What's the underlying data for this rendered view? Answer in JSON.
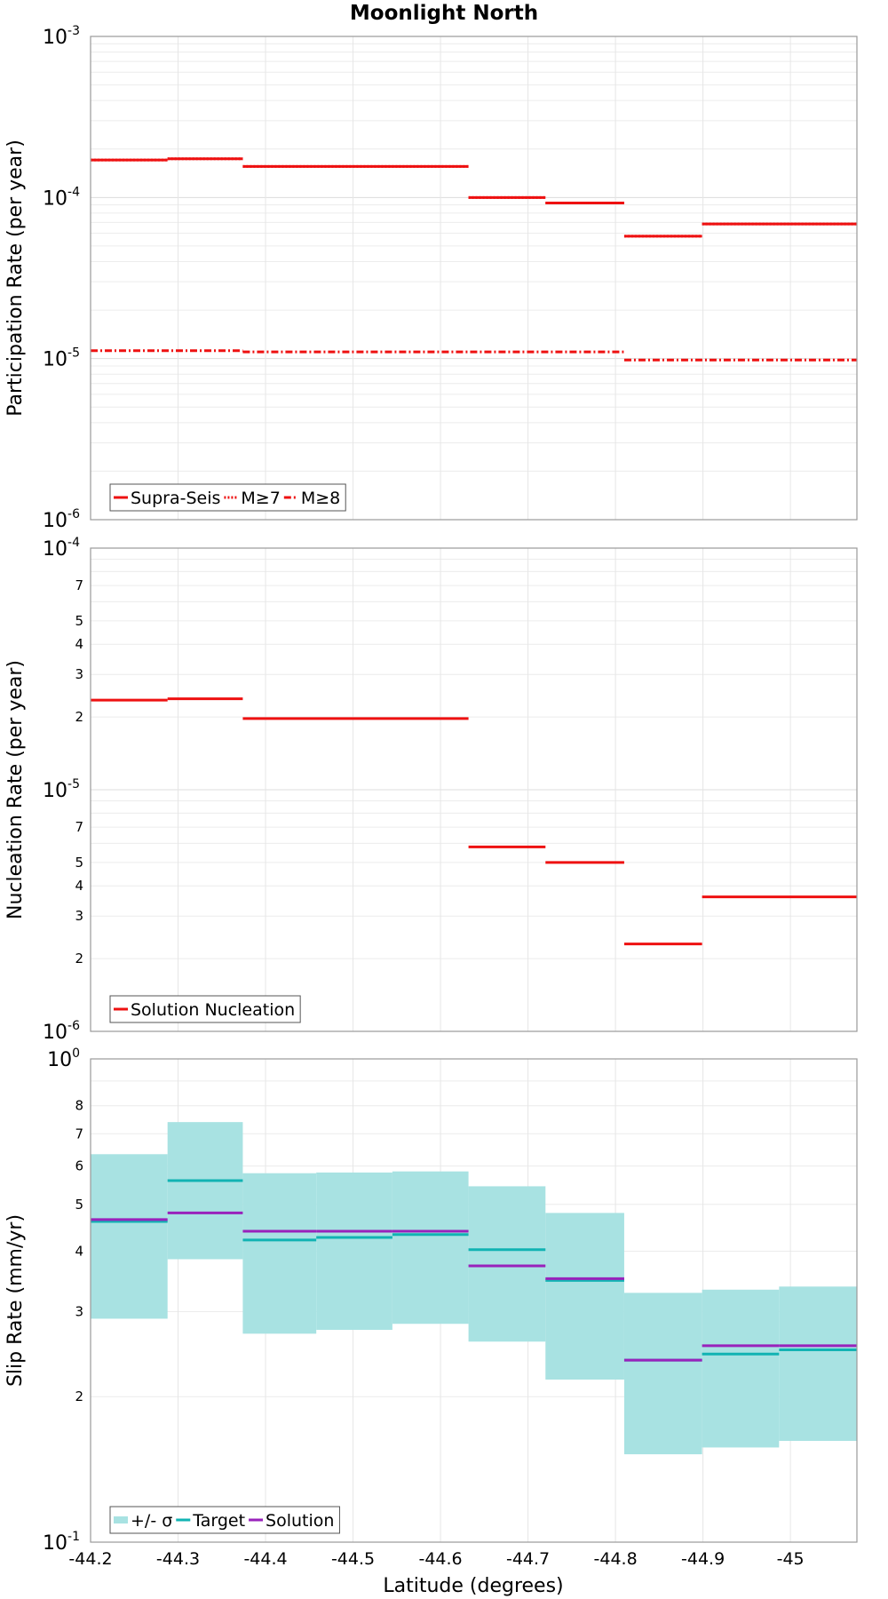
{
  "title": "Moonlight North",
  "x_axis": {
    "label": "Latitude (degrees)",
    "range": [
      -44.2,
      -45.076
    ],
    "ticks": [
      "-44.2",
      "-44.3",
      "-44.4",
      "-44.5",
      "-44.6",
      "-44.7",
      "-44.8",
      "-44.9",
      "-45"
    ],
    "tick_values": [
      -44.2,
      -44.3,
      -44.4,
      -44.5,
      -44.6,
      -44.7,
      -44.8,
      -44.9,
      -45.0
    ]
  },
  "chart_data": [
    {
      "type": "line",
      "style": "step",
      "scale": "log",
      "ylabel": "Participation Rate (per year)",
      "ylim": [
        1e-06,
        0.001
      ],
      "decade_labels": [
        {
          "base": "10",
          "exp": "-6"
        },
        {
          "base": "10",
          "exp": "-5"
        },
        {
          "base": "10",
          "exp": "-4"
        },
        {
          "base": "10",
          "exp": "-3"
        }
      ],
      "grid": true,
      "legend_position": "bottom-left",
      "series": [
        {
          "name": "Supra-Seis",
          "color": "#ee1111",
          "dash": "solid",
          "segments": [
            {
              "x": [
                -44.2,
                -44.288
              ],
              "y": 0.000171
            },
            {
              "x": [
                -44.288,
                -44.374
              ],
              "y": 0.000174
            },
            {
              "x": [
                -44.374,
                -44.632
              ],
              "y": 0.000156
            },
            {
              "x": [
                -44.632,
                -44.72
              ],
              "y": 0.0001
            },
            {
              "x": [
                -44.72,
                -44.81
              ],
              "y": 9.25e-05
            },
            {
              "x": [
                -44.81,
                -44.899
              ],
              "y": 5.75e-05
            },
            {
              "x": [
                -44.899,
                -45.076
              ],
              "y": 6.85e-05
            }
          ]
        },
        {
          "name": "M≥7",
          "color": "#ee1111",
          "dash": "dotted",
          "segments": [
            {
              "x": [
                -44.2,
                -44.288
              ],
              "y": 0.000171
            },
            {
              "x": [
                -44.288,
                -44.374
              ],
              "y": 0.000174
            },
            {
              "x": [
                -44.374,
                -44.632
              ],
              "y": 0.000156
            },
            {
              "x": [
                -44.632,
                -44.72
              ],
              "y": 0.0001
            },
            {
              "x": [
                -44.72,
                -44.81
              ],
              "y": 9.25e-05
            },
            {
              "x": [
                -44.81,
                -44.899
              ],
              "y": 5.75e-05
            },
            {
              "x": [
                -44.899,
                -45.076
              ],
              "y": 6.85e-05
            }
          ]
        },
        {
          "name": "M≥8",
          "color": "#ee1111",
          "dash": "dashdot",
          "segments": [
            {
              "x": [
                -44.2,
                -44.374
              ],
              "y": 1.12e-05
            },
            {
              "x": [
                -44.374,
                -44.81
              ],
              "y": 1.1e-05
            },
            {
              "x": [
                -44.81,
                -45.076
              ],
              "y": 9.8e-06
            }
          ]
        }
      ]
    },
    {
      "type": "line",
      "style": "step",
      "scale": "log",
      "ylabel": "Nucleation Rate (per year)",
      "ylim": [
        1e-06,
        0.0001
      ],
      "decade_labels": [
        {
          "base": "10",
          "exp": "-6"
        },
        {
          "base": "10",
          "exp": "-5"
        },
        {
          "base": "10",
          "exp": "-4"
        }
      ],
      "minor_labels": [
        2,
        3,
        4,
        5,
        7
      ],
      "grid": true,
      "legend_position": "bottom-left",
      "series": [
        {
          "name": "Solution Nucleation",
          "color": "#ee1111",
          "dash": "solid",
          "segments": [
            {
              "x": [
                -44.2,
                -44.288
              ],
              "y": 2.35e-05
            },
            {
              "x": [
                -44.288,
                -44.374
              ],
              "y": 2.38e-05
            },
            {
              "x": [
                -44.374,
                -44.632
              ],
              "y": 1.97e-05
            },
            {
              "x": [
                -44.632,
                -44.72
              ],
              "y": 5.8e-06
            },
            {
              "x": [
                -44.72,
                -44.81
              ],
              "y": 5e-06
            },
            {
              "x": [
                -44.81,
                -44.899
              ],
              "y": 2.3e-06
            },
            {
              "x": [
                -44.899,
                -45.076
              ],
              "y": 3.6e-06
            }
          ]
        }
      ]
    },
    {
      "type": "line",
      "style": "step",
      "scale": "log",
      "ylabel": "Slip Rate (mm/yr)",
      "ylim": [
        1,
        10
      ],
      "decade_labels": [
        {
          "base": "10",
          "exp": "-1"
        },
        {
          "base": "10",
          "exp": "0"
        }
      ],
      "minor_labels": [
        2,
        3,
        4,
        5,
        6,
        7,
        8
      ],
      "grid": true,
      "legend_position": "bottom-left",
      "series": [
        {
          "name": "+/- σ",
          "color": "#a8e2e2",
          "type": "band",
          "segments": [
            {
              "x": [
                -44.2,
                -44.288
              ],
              "low": 2.9,
              "high": 6.35
            },
            {
              "x": [
                -44.288,
                -44.374
              ],
              "low": 3.85,
              "high": 7.4
            },
            {
              "x": [
                -44.374,
                -44.458
              ],
              "low": 2.7,
              "high": 5.8
            },
            {
              "x": [
                -44.458,
                -44.545
              ],
              "low": 2.75,
              "high": 5.82
            },
            {
              "x": [
                -44.545,
                -44.632
              ],
              "low": 2.83,
              "high": 5.85
            },
            {
              "x": [
                -44.632,
                -44.72
              ],
              "low": 2.6,
              "high": 5.45
            },
            {
              "x": [
                -44.72,
                -44.81
              ],
              "low": 2.17,
              "high": 4.8
            },
            {
              "x": [
                -44.81,
                -44.899
              ],
              "low": 1.52,
              "high": 3.28
            },
            {
              "x": [
                -44.899,
                -44.987
              ],
              "low": 1.57,
              "high": 3.33
            },
            {
              "x": [
                -44.987,
                -45.076
              ],
              "low": 1.62,
              "high": 3.38
            }
          ]
        },
        {
          "name": "Target",
          "color": "#11b3b3",
          "dash": "solid",
          "segments": [
            {
              "x": [
                -44.2,
                -44.288
              ],
              "y": 4.61
            },
            {
              "x": [
                -44.288,
                -44.374
              ],
              "y": 5.6
            },
            {
              "x": [
                -44.374,
                -44.458
              ],
              "y": 4.22
            },
            {
              "x": [
                -44.458,
                -44.545
              ],
              "y": 4.27
            },
            {
              "x": [
                -44.545,
                -44.632
              ],
              "y": 4.33
            },
            {
              "x": [
                -44.632,
                -44.72
              ],
              "y": 4.03
            },
            {
              "x": [
                -44.72,
                -44.81
              ],
              "y": 3.48
            },
            {
              "x": [
                -44.81,
                -44.899
              ],
              "y": 2.38
            },
            {
              "x": [
                -44.899,
                -44.987
              ],
              "y": 2.45
            },
            {
              "x": [
                -44.987,
                -45.076
              ],
              "y": 2.5
            }
          ]
        },
        {
          "name": "Solution",
          "color": "#9922bb",
          "dash": "solid",
          "segments": [
            {
              "x": [
                -44.2,
                -44.288
              ],
              "y": 4.65
            },
            {
              "x": [
                -44.288,
                -44.374
              ],
              "y": 4.8
            },
            {
              "x": [
                -44.374,
                -44.458
              ],
              "y": 4.4
            },
            {
              "x": [
                -44.458,
                -44.545
              ],
              "y": 4.4
            },
            {
              "x": [
                -44.545,
                -44.632
              ],
              "y": 4.4
            },
            {
              "x": [
                -44.632,
                -44.72
              ],
              "y": 3.73
            },
            {
              "x": [
                -44.72,
                -44.81
              ],
              "y": 3.51
            },
            {
              "x": [
                -44.81,
                -44.899
              ],
              "y": 2.38
            },
            {
              "x": [
                -44.899,
                -44.987
              ],
              "y": 2.55
            },
            {
              "x": [
                -44.987,
                -45.076
              ],
              "y": 2.55
            }
          ]
        }
      ]
    }
  ]
}
